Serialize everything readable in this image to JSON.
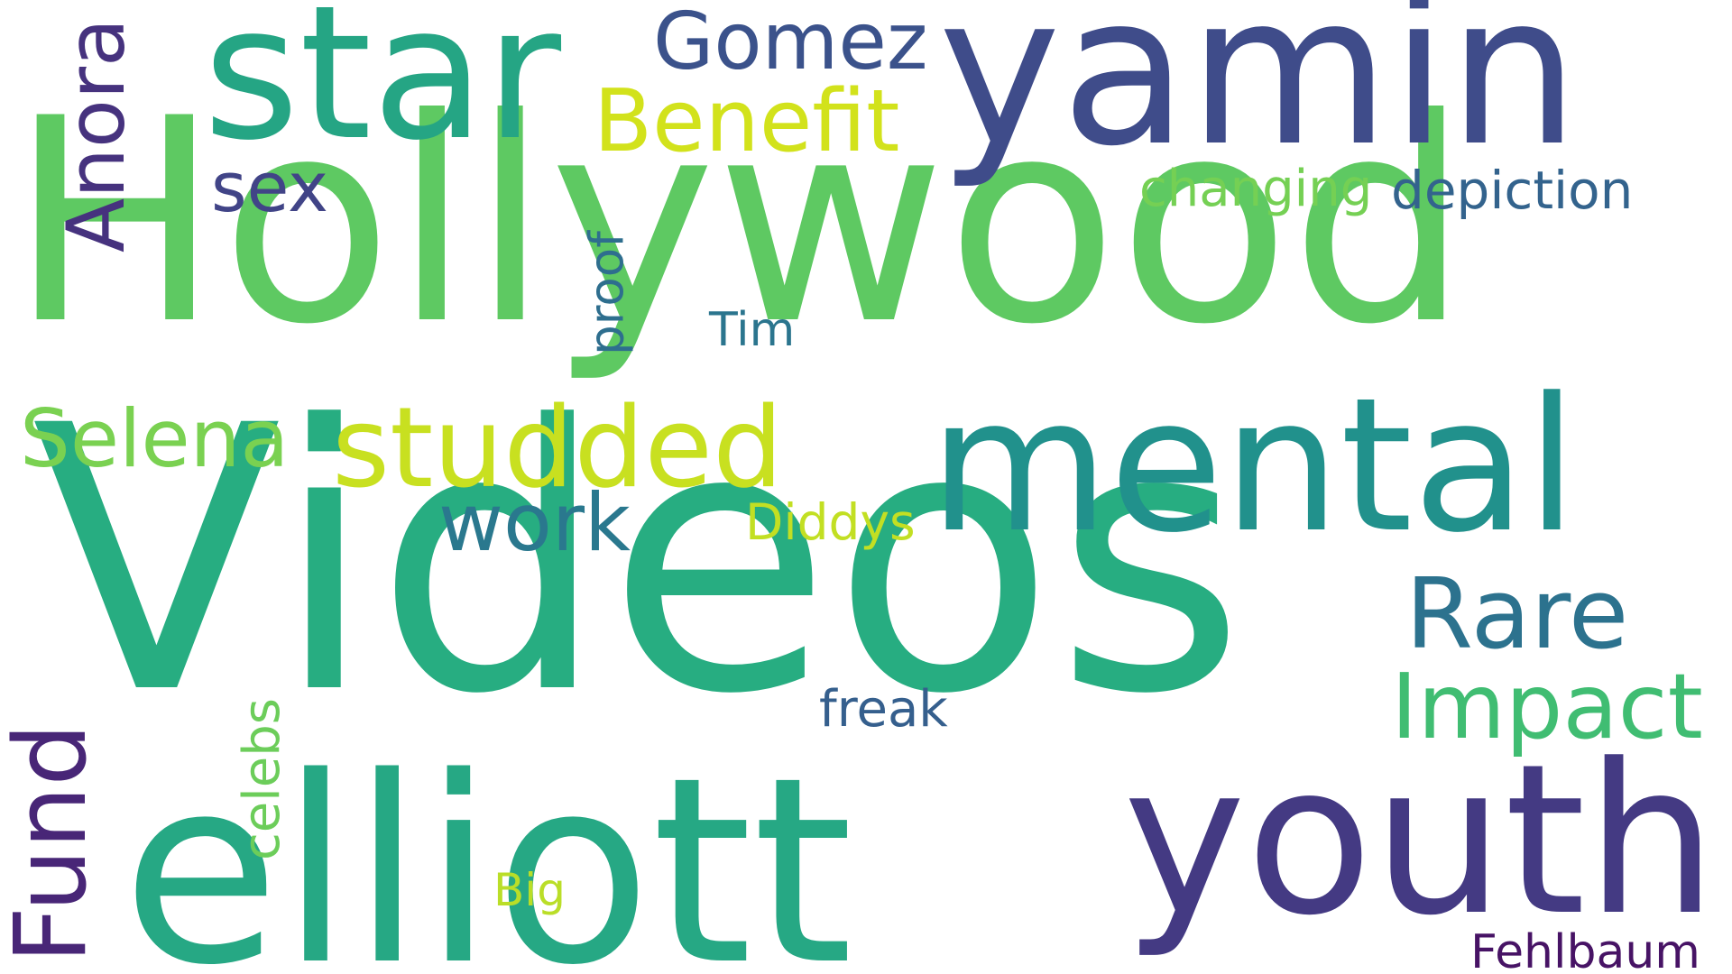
{
  "words": [
    {
      "text": "Hollywood",
      "color": "#5ec962"
    },
    {
      "text": "Videos",
      "color": "#27ad81"
    },
    {
      "text": "yamin",
      "color": "#3f4c8a"
    },
    {
      "text": "star",
      "color": "#25a584"
    },
    {
      "text": "mental",
      "color": "#21918c"
    },
    {
      "text": "elliott",
      "color": "#26a884"
    },
    {
      "text": "youth",
      "color": "#443a83"
    },
    {
      "text": "studded",
      "color": "#c8e020"
    },
    {
      "text": "Benefit",
      "color": "#d2e21b"
    },
    {
      "text": "Gomez",
      "color": "#3b528b"
    },
    {
      "text": "Impact",
      "color": "#40bd72"
    },
    {
      "text": "Rare",
      "color": "#2c728e"
    },
    {
      "text": "Selena",
      "color": "#7ad151"
    },
    {
      "text": "depiction",
      "color": "#33638d"
    },
    {
      "text": "changing",
      "color": "#75d054"
    },
    {
      "text": "sex",
      "color": "#414487"
    },
    {
      "text": "work",
      "color": "#2a788e"
    },
    {
      "text": "Diddys",
      "color": "#c2df23"
    },
    {
      "text": "freak",
      "color": "#355f8d"
    },
    {
      "text": "Tim",
      "color": "#2b758e"
    },
    {
      "text": "Big",
      "color": "#bade28"
    },
    {
      "text": "Fehlbaum",
      "color": "#471365"
    },
    {
      "text": "Anora",
      "color": "#46327e"
    },
    {
      "text": "Fund",
      "color": "#482677"
    },
    {
      "text": "proof",
      "color": "#2e6e8e"
    },
    {
      "text": "celebs",
      "color": "#6ccd5a"
    }
  ]
}
